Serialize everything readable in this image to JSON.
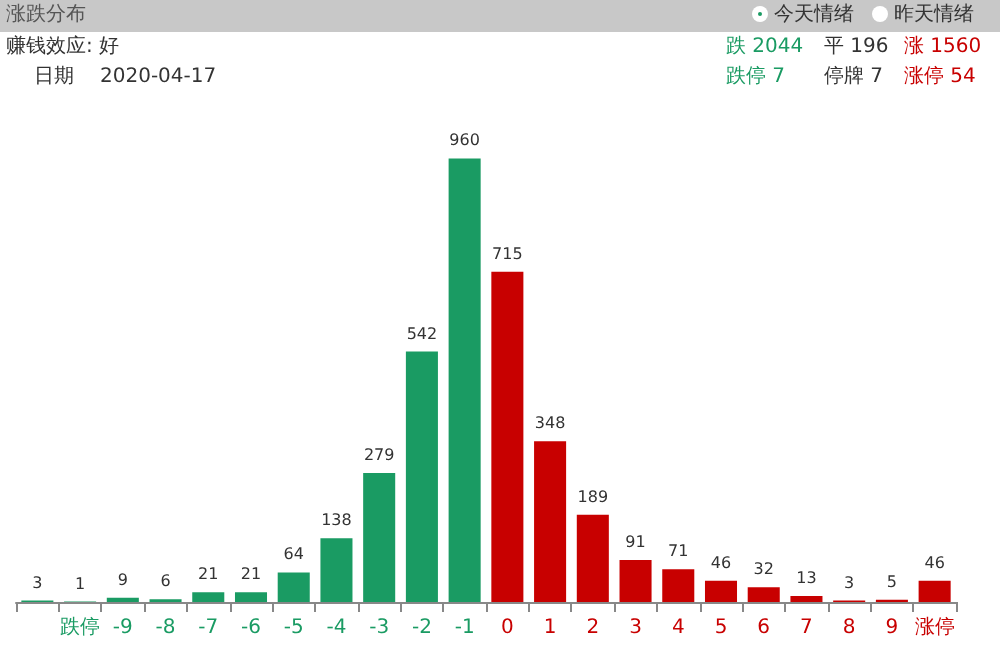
{
  "chart_data": {
    "type": "bar",
    "title": "涨跌分布",
    "categories": [
      null,
      "跌停",
      "-9",
      "-8",
      "-7",
      "-6",
      "-5",
      "-4",
      "-3",
      "-2",
      "-1",
      "0",
      "1",
      "2",
      "3",
      "4",
      "5",
      "6",
      "7",
      "8",
      "9",
      "涨停"
    ],
    "values": [
      3,
      1,
      9,
      6,
      21,
      21,
      64,
      138,
      279,
      542,
      960,
      715,
      348,
      189,
      91,
      71,
      46,
      32,
      13,
      3,
      5,
      46
    ],
    "colors": [
      "#1a9b63",
      "#1a9b63",
      "#1a9b63",
      "#1a9b63",
      "#1a9b63",
      "#1a9b63",
      "#1a9b63",
      "#1a9b63",
      "#1a9b63",
      "#1a9b63",
      "#1a9b63",
      "#c80000",
      "#c80000",
      "#c80000",
      "#c80000",
      "#c80000",
      "#c80000",
      "#c80000",
      "#c80000",
      "#c80000",
      "#c80000",
      "#c80000"
    ],
    "data_labels": true,
    "grid": false,
    "annotations": [
      "今天情绪",
      "昨天情绪",
      "赚钱效应: 好",
      "日期",
      "2020-04-17",
      "跌 2044",
      "平 196",
      "涨 1560",
      "跌停 7",
      "停牌 7",
      "涨停 54"
    ]
  }
}
